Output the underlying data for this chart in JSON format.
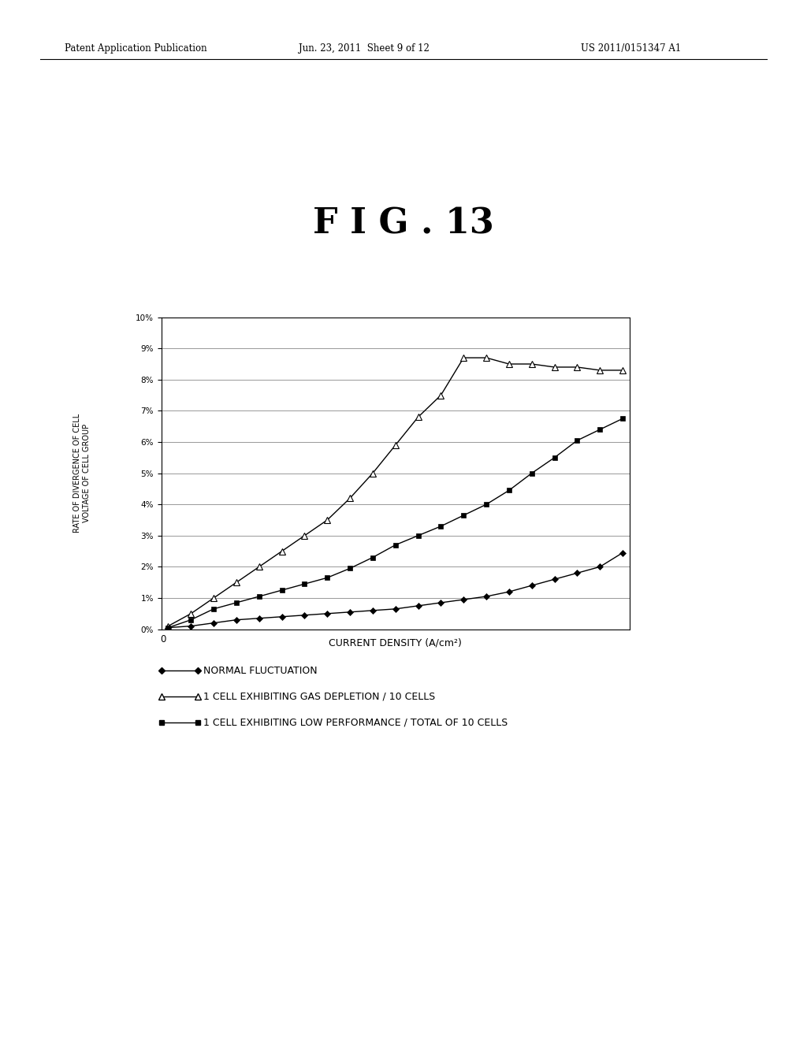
{
  "title": "F I G . 13",
  "header_left": "Patent Application Publication",
  "header_center": "Jun. 23, 2011  Sheet 9 of 12",
  "header_right": "US 2011/0151347 A1",
  "xlabel": "CURRENT DENSITY (A/cm²)",
  "ylabel_line1": "RATE OF DIVERGENCE OF CELL",
  "ylabel_line2": "VOLTAGE OF CELL GROUP",
  "x_origin_label": "0",
  "ylim": [
    0,
    10
  ],
  "ytick_labels": [
    "0%",
    "1%",
    "2%",
    "3%",
    "4%",
    "5%",
    "6%",
    "7%",
    "8%",
    "9%",
    "10%"
  ],
  "ytick_values": [
    0,
    1,
    2,
    3,
    4,
    5,
    6,
    7,
    8,
    9,
    10
  ],
  "legend1": "NORMAL FLUCTUATION",
  "legend2": "1 CELL EXHIBITING GAS DEPLETION / 10 CELLS",
  "legend3": "1 CELL EXHIBITING LOW PERFORMANCE / TOTAL OF 10 CELLS",
  "series1_x": [
    0,
    1,
    2,
    3,
    4,
    5,
    6,
    7,
    8,
    9,
    10,
    11,
    12,
    13,
    14,
    15,
    16,
    17,
    18,
    19,
    20
  ],
  "series1_y": [
    0.05,
    0.1,
    0.2,
    0.3,
    0.35,
    0.4,
    0.45,
    0.5,
    0.55,
    0.6,
    0.65,
    0.75,
    0.85,
    0.95,
    1.05,
    1.2,
    1.4,
    1.6,
    1.8,
    2.0,
    2.45
  ],
  "series2_x": [
    0,
    1,
    2,
    3,
    4,
    5,
    6,
    7,
    8,
    9,
    10,
    11,
    12,
    13,
    14,
    15,
    16,
    17,
    18,
    19,
    20
  ],
  "series2_y": [
    0.1,
    0.5,
    1.0,
    1.5,
    2.0,
    2.5,
    3.0,
    3.5,
    4.2,
    5.0,
    5.9,
    6.8,
    7.5,
    8.7,
    8.7,
    8.5,
    8.5,
    8.4,
    8.4,
    8.3,
    8.3
  ],
  "series3_x": [
    0,
    1,
    2,
    3,
    4,
    5,
    6,
    7,
    8,
    9,
    10,
    11,
    12,
    13,
    14,
    15,
    16,
    17,
    18,
    19,
    20
  ],
  "series3_y": [
    0.05,
    0.3,
    0.65,
    0.85,
    1.05,
    1.25,
    1.45,
    1.65,
    1.95,
    2.3,
    2.7,
    3.0,
    3.3,
    3.65,
    4.0,
    4.45,
    5.0,
    5.5,
    6.05,
    6.4,
    6.75
  ],
  "background_color": "#ffffff",
  "text_color": "#000000",
  "grid_color": "#888888"
}
